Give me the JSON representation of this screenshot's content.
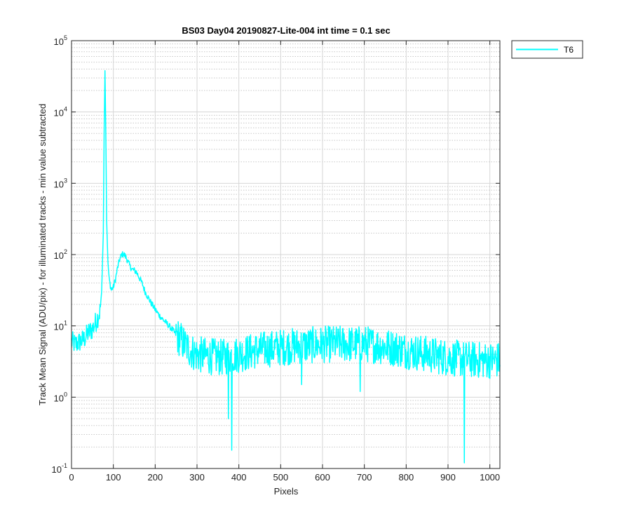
{
  "chart_data": {
    "type": "line",
    "title": "BS03 Day04 20190827-Lite-004 int time = 0.1 sec",
    "xlabel": "Pixels",
    "ylabel": "Track Mean Signal (ADU/pix) - for illuminated tracks - min value subtracted",
    "xlim": [
      0,
      1024
    ],
    "ylim": [
      0.1,
      100000
    ],
    "yscale": "log",
    "grid": true,
    "minor_grid": true,
    "legend_position": "outside-top-right",
    "x_ticks": [
      "0",
      "100",
      "200",
      "300",
      "400",
      "500",
      "600",
      "700",
      "800",
      "900",
      "1000"
    ],
    "y_ticks": [
      {
        "base": "10",
        "exp": "-1"
      },
      {
        "base": "10",
        "exp": "0"
      },
      {
        "base": "10",
        "exp": "1"
      },
      {
        "base": "10",
        "exp": "2"
      },
      {
        "base": "10",
        "exp": "3"
      },
      {
        "base": "10",
        "exp": "4"
      },
      {
        "base": "10",
        "exp": "5"
      }
    ],
    "series": [
      {
        "name": "T6",
        "color": "#00ffff",
        "noise_note": "values are the approximate envelope read from the plot; the plotted line is jittered around it",
        "points": [
          [
            0,
            6
          ],
          [
            10,
            5.5
          ],
          [
            20,
            6
          ],
          [
            30,
            6.5
          ],
          [
            40,
            8
          ],
          [
            50,
            9
          ],
          [
            60,
            12
          ],
          [
            68,
            16
          ],
          [
            72,
            30
          ],
          [
            76,
            200
          ],
          [
            78,
            5000
          ],
          [
            80,
            38000
          ],
          [
            82,
            5000
          ],
          [
            84,
            300
          ],
          [
            87,
            80
          ],
          [
            90,
            45
          ],
          [
            95,
            32
          ],
          [
            100,
            35
          ],
          [
            105,
            45
          ],
          [
            110,
            65
          ],
          [
            115,
            85
          ],
          [
            120,
            100
          ],
          [
            125,
            102
          ],
          [
            130,
            92
          ],
          [
            135,
            80
          ],
          [
            140,
            68
          ],
          [
            145,
            62
          ],
          [
            150,
            60
          ],
          [
            155,
            57
          ],
          [
            160,
            50
          ],
          [
            165,
            44
          ],
          [
            170,
            38
          ],
          [
            175,
            31
          ],
          [
            180,
            27
          ],
          [
            185,
            24
          ],
          [
            190,
            21
          ],
          [
            195,
            19
          ],
          [
            200,
            17
          ],
          [
            210,
            14
          ],
          [
            220,
            12
          ],
          [
            230,
            10.5
          ],
          [
            240,
            9
          ],
          [
            250,
            7.5
          ],
          [
            260,
            6.5
          ],
          [
            270,
            5.5
          ],
          [
            280,
            4.8
          ],
          [
            290,
            4.3
          ],
          [
            300,
            4
          ],
          [
            320,
            3.8
          ],
          [
            340,
            3.7
          ],
          [
            360,
            3.6
          ],
          [
            380,
            3.8
          ],
          [
            400,
            4
          ],
          [
            420,
            4.2
          ],
          [
            440,
            4.5
          ],
          [
            460,
            4.7
          ],
          [
            480,
            4.8
          ],
          [
            500,
            5
          ],
          [
            530,
            5.2
          ],
          [
            560,
            5.3
          ],
          [
            600,
            5.5
          ],
          [
            640,
            5.6
          ],
          [
            680,
            5.5
          ],
          [
            700,
            5.6
          ],
          [
            720,
            5.4
          ],
          [
            740,
            5.2
          ],
          [
            760,
            5
          ],
          [
            780,
            4.8
          ],
          [
            800,
            4.5
          ],
          [
            830,
            4.2
          ],
          [
            860,
            3.9
          ],
          [
            900,
            3.6
          ],
          [
            940,
            3.4
          ],
          [
            980,
            3.3
          ],
          [
            1024,
            3.3
          ]
        ],
        "dips": [
          [
            383,
            0.18
          ],
          [
            939,
            0.12
          ],
          [
            375,
            0.5
          ],
          [
            550,
            1.5
          ],
          [
            690,
            1.2
          ]
        ]
      }
    ]
  }
}
